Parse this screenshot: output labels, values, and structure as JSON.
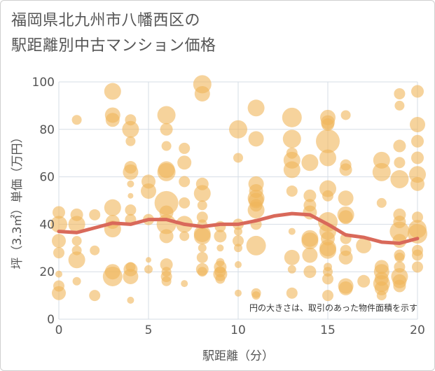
{
  "title_line1": "福岡県北九州市八幡西区の",
  "title_line2": "駅距離別中古マンション価格",
  "chart_data": {
    "type": "scatter",
    "xlabel": "駅距離（分）",
    "ylabel": "坪（3.3㎡）単価（万円）",
    "xlim": [
      0,
      20
    ],
    "ylim": [
      0,
      100
    ],
    "xticks": [
      0,
      5,
      10,
      15,
      20
    ],
    "yticks": [
      0,
      20,
      40,
      60,
      80,
      100
    ],
    "grid": true,
    "note": "円の大きさは、取引のあった物件面積を示す",
    "colors": {
      "bubble": "#f0b65a",
      "trend": "#d9695a",
      "grid": "#d6dde6"
    },
    "series": [
      {
        "type": "bubble",
        "points": [
          [
            0,
            45,
            9
          ],
          [
            0,
            40,
            12
          ],
          [
            0,
            33,
            10
          ],
          [
            0,
            28,
            8
          ],
          [
            0,
            19,
            5
          ],
          [
            0,
            14,
            8
          ],
          [
            0,
            11,
            10
          ],
          [
            1,
            84,
            7
          ],
          [
            1,
            44,
            9
          ],
          [
            1,
            40,
            12
          ],
          [
            1,
            33,
            7
          ],
          [
            1,
            29,
            7
          ],
          [
            1,
            25,
            12
          ],
          [
            1,
            16,
            6
          ],
          [
            2,
            44,
            8
          ],
          [
            2,
            29,
            7
          ],
          [
            2,
            10,
            8
          ],
          [
            3,
            96,
            12
          ],
          [
            3,
            86,
            11
          ],
          [
            3,
            84,
            10
          ],
          [
            3,
            47,
            12
          ],
          [
            3,
            41,
            10
          ],
          [
            3,
            38,
            12
          ],
          [
            3,
            20,
            11
          ],
          [
            3,
            18,
            14
          ],
          [
            4,
            84,
            8
          ],
          [
            4,
            80,
            12
          ],
          [
            4,
            75,
            7
          ],
          [
            4,
            64,
            9
          ],
          [
            4,
            62,
            11
          ],
          [
            4,
            57,
            5
          ],
          [
            4,
            52,
            4
          ],
          [
            4,
            46,
            8
          ],
          [
            4,
            42,
            8
          ],
          [
            4,
            22,
            7
          ],
          [
            4,
            21,
            10
          ],
          [
            4,
            18,
            11
          ],
          [
            4,
            8,
            5
          ],
          [
            5,
            58,
            10
          ],
          [
            5,
            54,
            11
          ],
          [
            5,
            42,
            8
          ],
          [
            5,
            25,
            4
          ],
          [
            5,
            21,
            6
          ],
          [
            6,
            86,
            13
          ],
          [
            6,
            80,
            9
          ],
          [
            6,
            73,
            7
          ],
          [
            6,
            63,
            12
          ],
          [
            6,
            62,
            13
          ],
          [
            6,
            49,
            17
          ],
          [
            6,
            45,
            10
          ],
          [
            6,
            40,
            14
          ],
          [
            6,
            35,
            10
          ],
          [
            6,
            23,
            9
          ],
          [
            6,
            20,
            7
          ],
          [
            6,
            18,
            8
          ],
          [
            6,
            16,
            7
          ],
          [
            7,
            72,
            8
          ],
          [
            7,
            66,
            10
          ],
          [
            7,
            58,
            8
          ],
          [
            7,
            49,
            8
          ],
          [
            7,
            40,
            12
          ],
          [
            7,
            35,
            7
          ],
          [
            7,
            15,
            5
          ],
          [
            8,
            99,
            13
          ],
          [
            8,
            95,
            11
          ],
          [
            8,
            57,
            9
          ],
          [
            8,
            53,
            12
          ],
          [
            8,
            48,
            7
          ],
          [
            8,
            43,
            8
          ],
          [
            8,
            40,
            7
          ],
          [
            8,
            36,
            12
          ],
          [
            8,
            35,
            12
          ],
          [
            8,
            30,
            6
          ],
          [
            8,
            26,
            8
          ],
          [
            8,
            21,
            9
          ],
          [
            8,
            20,
            7
          ],
          [
            9,
            39,
            8
          ],
          [
            9,
            35,
            9
          ],
          [
            9,
            30,
            5
          ],
          [
            9,
            24,
            6
          ],
          [
            9,
            22,
            9
          ],
          [
            9,
            20,
            8
          ],
          [
            9,
            19,
            10
          ],
          [
            9,
            17,
            7
          ],
          [
            10,
            80,
            13
          ],
          [
            10,
            68,
            7
          ],
          [
            10,
            40,
            8
          ],
          [
            10,
            37,
            6
          ],
          [
            10,
            33,
            8
          ],
          [
            10,
            30,
            6
          ],
          [
            10,
            23,
            5
          ],
          [
            10,
            11,
            5
          ],
          [
            11,
            89,
            12
          ],
          [
            11,
            76,
            11
          ],
          [
            11,
            57,
            11
          ],
          [
            11,
            54,
            10
          ],
          [
            11,
            51,
            12
          ],
          [
            11,
            50,
            11
          ],
          [
            11,
            48,
            9
          ],
          [
            11,
            46,
            12
          ],
          [
            11,
            40,
            8
          ],
          [
            11,
            31,
            14
          ],
          [
            11,
            11,
            7
          ],
          [
            11,
            10,
            6
          ],
          [
            13,
            85,
            14
          ],
          [
            13,
            76,
            13
          ],
          [
            13,
            70,
            8
          ],
          [
            13,
            67,
            12
          ],
          [
            13,
            63,
            12
          ],
          [
            13,
            54,
            8
          ],
          [
            13,
            37,
            5
          ],
          [
            13,
            26,
            11
          ],
          [
            13,
            21,
            6
          ],
          [
            13,
            11,
            8
          ],
          [
            14,
            66,
            12
          ],
          [
            14,
            52,
            9
          ],
          [
            14,
            48,
            9
          ],
          [
            14,
            45,
            10
          ],
          [
            14,
            34,
            12
          ],
          [
            14,
            33,
            12
          ],
          [
            14,
            27,
            11
          ],
          [
            14,
            20,
            9
          ],
          [
            15,
            85,
            11
          ],
          [
            15,
            83,
            10
          ],
          [
            15,
            82,
            9
          ],
          [
            15,
            75,
            17
          ],
          [
            15,
            68,
            12
          ],
          [
            15,
            55,
            12
          ],
          [
            15,
            52,
            8
          ],
          [
            15,
            41,
            14
          ],
          [
            15,
            37,
            12
          ],
          [
            15,
            34,
            10
          ],
          [
            15,
            30,
            12
          ],
          [
            15,
            29,
            12
          ],
          [
            15,
            22,
            6
          ],
          [
            15,
            20,
            7
          ],
          [
            15,
            17,
            8
          ],
          [
            15,
            10,
            8
          ],
          [
            16,
            86,
            7
          ],
          [
            16,
            65,
            8
          ],
          [
            16,
            63,
            9
          ],
          [
            16,
            51,
            11
          ],
          [
            16,
            44,
            12
          ],
          [
            16,
            43,
            10
          ],
          [
            16,
            34,
            8
          ],
          [
            16,
            29,
            8
          ],
          [
            16,
            26,
            10
          ],
          [
            16,
            14,
            11
          ],
          [
            16,
            13,
            10
          ],
          [
            17,
            31,
            11
          ],
          [
            17,
            16,
            9
          ],
          [
            18,
            67,
            12
          ],
          [
            18,
            62,
            13
          ],
          [
            18,
            49,
            7
          ],
          [
            18,
            22,
            10
          ],
          [
            18,
            20,
            11
          ],
          [
            18,
            17,
            10
          ],
          [
            18,
            15,
            12
          ],
          [
            18,
            13,
            10
          ],
          [
            18,
            10,
            7
          ],
          [
            19,
            95,
            8
          ],
          [
            19,
            90,
            7
          ],
          [
            19,
            73,
            9
          ],
          [
            19,
            66,
            8
          ],
          [
            19,
            59,
            13
          ],
          [
            19,
            44,
            9
          ],
          [
            19,
            41,
            9
          ],
          [
            19,
            37,
            14
          ],
          [
            19,
            33,
            10
          ],
          [
            19,
            27,
            8
          ],
          [
            19,
            26,
            7
          ],
          [
            19,
            22,
            8
          ],
          [
            19,
            18,
            12
          ],
          [
            19,
            16,
            10
          ],
          [
            19,
            14,
            9
          ],
          [
            20,
            96,
            9
          ],
          [
            20,
            82,
            11
          ],
          [
            20,
            75,
            9
          ],
          [
            20,
            68,
            9
          ],
          [
            20,
            61,
            12
          ],
          [
            20,
            57,
            10
          ],
          [
            20,
            43,
            8
          ],
          [
            20,
            38,
            13
          ],
          [
            20,
            36,
            14
          ],
          [
            20,
            29,
            8
          ],
          [
            20,
            27,
            8
          ],
          [
            20,
            22,
            8
          ]
        ]
      },
      {
        "type": "line",
        "x": [
          0,
          1,
          2,
          3,
          4,
          5,
          6,
          7,
          8,
          9,
          10,
          11,
          12,
          13,
          14,
          15,
          16,
          17,
          18,
          19,
          20
        ],
        "y": [
          37,
          36.5,
          38.5,
          40.5,
          40,
          42,
          42,
          40,
          39,
          40,
          40,
          41.5,
          43.5,
          44.5,
          44,
          40,
          35.5,
          34.5,
          32.5,
          32,
          34
        ]
      }
    ]
  }
}
